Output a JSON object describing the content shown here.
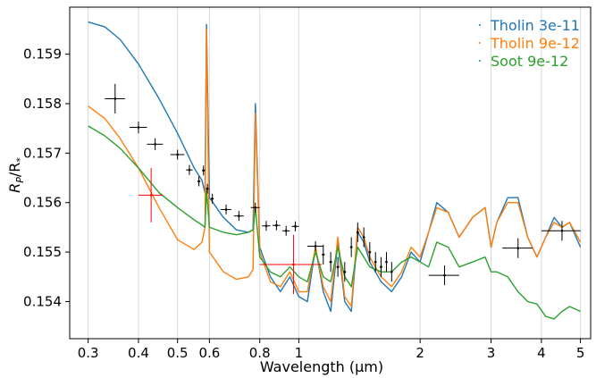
{
  "chart_data": {
    "type": "line",
    "title": "",
    "xlabel": "Wavelength (μm)",
    "ylabel_main": "R",
    "ylabel_sub1": "P",
    "ylabel_mid": "/R",
    "ylabel_sub2": "*",
    "x_scale": "log",
    "xlim": [
      0.27,
      5.3
    ],
    "ylim": [
      0.15325,
      0.15995
    ],
    "x_ticks": [
      0.3,
      0.4,
      0.5,
      0.6,
      0.8,
      1,
      2,
      3,
      4,
      5
    ],
    "x_tick_labels": [
      "0.3",
      "0.4",
      "0.5",
      "0.6",
      "0.8",
      "1",
      "2",
      "3",
      "4",
      "5"
    ],
    "y_ticks": [
      0.154,
      0.155,
      0.156,
      0.157,
      0.158,
      0.159
    ],
    "y_tick_labels": [
      "0.154",
      "0.155",
      "0.156",
      "0.157",
      "0.158",
      "0.159"
    ],
    "grid": "vertical",
    "legend_position": "top-right",
    "series": [
      {
        "name": "Tholin 3e-11",
        "color": "#1f77b4",
        "x": [
          0.3,
          0.33,
          0.36,
          0.4,
          0.45,
          0.5,
          0.55,
          0.575,
          0.585,
          0.59,
          0.6,
          0.65,
          0.7,
          0.75,
          0.77,
          0.78,
          0.8,
          0.85,
          0.9,
          0.95,
          1.0,
          1.05,
          1.1,
          1.15,
          1.2,
          1.25,
          1.3,
          1.35,
          1.4,
          1.45,
          1.5,
          1.6,
          1.7,
          1.8,
          1.9,
          2.0,
          2.1,
          2.2,
          2.35,
          2.5,
          2.7,
          2.9,
          3.0,
          3.1,
          3.3,
          3.5,
          3.7,
          3.9,
          4.1,
          4.3,
          4.5,
          4.7,
          5.0
        ],
        "y": [
          0.15965,
          0.15955,
          0.1593,
          0.1588,
          0.1581,
          0.1574,
          0.1567,
          0.15645,
          0.1562,
          0.1596,
          0.1561,
          0.1557,
          0.15545,
          0.1554,
          0.15545,
          0.158,
          0.1551,
          0.1545,
          0.1542,
          0.1545,
          0.1541,
          0.154,
          0.1551,
          0.1542,
          0.1538,
          0.1552,
          0.154,
          0.1538,
          0.1554,
          0.1552,
          0.1548,
          0.1544,
          0.1542,
          0.1545,
          0.155,
          0.1548,
          0.1554,
          0.156,
          0.1558,
          0.1553,
          0.1557,
          0.1559,
          0.1551,
          0.1556,
          0.1561,
          0.1561,
          0.1553,
          0.1549,
          0.1553,
          0.1557,
          0.1555,
          0.1556,
          0.1551
        ]
      },
      {
        "name": "Tholin 9e-12",
        "color": "#ff7f0e",
        "x": [
          0.3,
          0.33,
          0.36,
          0.4,
          0.45,
          0.5,
          0.55,
          0.575,
          0.585,
          0.59,
          0.6,
          0.65,
          0.7,
          0.75,
          0.77,
          0.78,
          0.8,
          0.85,
          0.9,
          0.95,
          1.0,
          1.05,
          1.1,
          1.15,
          1.2,
          1.25,
          1.3,
          1.35,
          1.4,
          1.45,
          1.5,
          1.6,
          1.7,
          1.8,
          1.9,
          2.0,
          2.1,
          2.2,
          2.35,
          2.5,
          2.7,
          2.9,
          3.0,
          3.1,
          3.3,
          3.5,
          3.7,
          3.9,
          4.1,
          4.3,
          4.5,
          4.7,
          5.0
        ],
        "y": [
          0.15795,
          0.1577,
          0.1573,
          0.1567,
          0.1559,
          0.15525,
          0.15505,
          0.1552,
          0.1555,
          0.1595,
          0.155,
          0.1546,
          0.15445,
          0.1545,
          0.15465,
          0.1578,
          0.155,
          0.1544,
          0.1543,
          0.1546,
          0.1542,
          0.1542,
          0.1551,
          0.1543,
          0.154,
          0.1553,
          0.1541,
          0.1539,
          0.1555,
          0.1553,
          0.1549,
          0.1545,
          0.1543,
          0.1546,
          0.1551,
          0.1549,
          0.1554,
          0.1559,
          0.1558,
          0.1553,
          0.1557,
          0.1559,
          0.1551,
          0.1556,
          0.156,
          0.156,
          0.1553,
          0.1549,
          0.1553,
          0.1556,
          0.1555,
          0.1556,
          0.1552
        ]
      },
      {
        "name": "Soot 9e-12",
        "color": "#2ca02c",
        "x": [
          0.3,
          0.33,
          0.36,
          0.4,
          0.45,
          0.5,
          0.55,
          0.575,
          0.585,
          0.59,
          0.6,
          0.65,
          0.7,
          0.75,
          0.77,
          0.78,
          0.8,
          0.85,
          0.9,
          0.95,
          1.0,
          1.05,
          1.1,
          1.15,
          1.2,
          1.25,
          1.3,
          1.35,
          1.4,
          1.45,
          1.5,
          1.6,
          1.7,
          1.8,
          1.9,
          2.0,
          2.1,
          2.2,
          2.35,
          2.5,
          2.7,
          2.9,
          3.0,
          3.1,
          3.3,
          3.5,
          3.7,
          3.9,
          4.1,
          4.3,
          4.5,
          4.7,
          5.0
        ],
        "y": [
          0.15755,
          0.15735,
          0.1571,
          0.1567,
          0.1562,
          0.1559,
          0.15565,
          0.15555,
          0.1555,
          0.15625,
          0.1555,
          0.1554,
          0.15535,
          0.1554,
          0.15545,
          0.1559,
          0.1549,
          0.1546,
          0.1545,
          0.1547,
          0.1545,
          0.1544,
          0.155,
          0.1545,
          0.1544,
          0.1551,
          0.1545,
          0.1543,
          0.1551,
          0.1549,
          0.1547,
          0.1546,
          0.1546,
          0.1548,
          0.1549,
          0.1548,
          0.1547,
          0.1552,
          0.1551,
          0.1547,
          0.1548,
          0.1549,
          0.1546,
          0.1546,
          0.1545,
          0.1542,
          0.154,
          0.15395,
          0.1537,
          0.15365,
          0.1538,
          0.1539,
          0.1538
        ]
      }
    ],
    "observations": [
      {
        "x": 0.35,
        "y": 0.1581,
        "xerr_lo": 0.02,
        "xerr_hi": 0.02,
        "yerr": 0.0003,
        "color": "#000000"
      },
      {
        "x": 0.4,
        "y": 0.15752,
        "xerr_lo": 0.02,
        "xerr_hi": 0.02,
        "yerr": 0.00012,
        "color": "#000000"
      },
      {
        "x": 0.44,
        "y": 0.15718,
        "xerr_lo": 0.02,
        "xerr_hi": 0.02,
        "yerr": 0.00012,
        "color": "#000000"
      },
      {
        "x": 0.5,
        "y": 0.15697,
        "xerr_lo": 0.02,
        "xerr_hi": 0.02,
        "yerr": 0.0001,
        "color": "#000000"
      },
      {
        "x": 0.535,
        "y": 0.15666,
        "xerr_lo": 0.01,
        "xerr_hi": 0.01,
        "yerr": 0.0001,
        "color": "#000000"
      },
      {
        "x": 0.565,
        "y": 0.15643,
        "xerr_lo": 0.005,
        "xerr_hi": 0.005,
        "yerr": 0.0001,
        "color": "#000000"
      },
      {
        "x": 0.58,
        "y": 0.15665,
        "xerr_lo": 0.005,
        "xerr_hi": 0.005,
        "yerr": 0.0001,
        "color": "#000000"
      },
      {
        "x": 0.593,
        "y": 0.15628,
        "xerr_lo": 0.005,
        "xerr_hi": 0.005,
        "yerr": 0.0001,
        "color": "#000000"
      },
      {
        "x": 0.61,
        "y": 0.15608,
        "xerr_lo": 0.005,
        "xerr_hi": 0.005,
        "yerr": 0.0001,
        "color": "#000000"
      },
      {
        "x": 0.66,
        "y": 0.15586,
        "xerr_lo": 0.02,
        "xerr_hi": 0.02,
        "yerr": 0.0001,
        "color": "#000000"
      },
      {
        "x": 0.71,
        "y": 0.15573,
        "xerr_lo": 0.02,
        "xerr_hi": 0.02,
        "yerr": 0.0001,
        "color": "#000000"
      },
      {
        "x": 0.78,
        "y": 0.1559,
        "xerr_lo": 0.02,
        "xerr_hi": 0.02,
        "yerr": 0.0001,
        "color": "#000000"
      },
      {
        "x": 0.83,
        "y": 0.15553,
        "xerr_lo": 0.02,
        "xerr_hi": 0.02,
        "yerr": 0.0001,
        "color": "#000000"
      },
      {
        "x": 0.88,
        "y": 0.15554,
        "xerr_lo": 0.02,
        "xerr_hi": 0.02,
        "yerr": 0.0001,
        "color": "#000000"
      },
      {
        "x": 0.93,
        "y": 0.15543,
        "xerr_lo": 0.02,
        "xerr_hi": 0.02,
        "yerr": 0.0001,
        "color": "#000000"
      },
      {
        "x": 0.98,
        "y": 0.15552,
        "xerr_lo": 0.02,
        "xerr_hi": 0.02,
        "yerr": 0.0001,
        "color": "#000000"
      },
      {
        "x": 1.1,
        "y": 0.15512,
        "xerr_lo": 0.05,
        "xerr_hi": 0.05,
        "yerr": 0.0001,
        "color": "#000000"
      },
      {
        "x": 1.15,
        "y": 0.15495,
        "xerr_lo": 0.01,
        "xerr_hi": 0.01,
        "yerr": 0.0002,
        "color": "#000000"
      },
      {
        "x": 1.2,
        "y": 0.1548,
        "xerr_lo": 0.01,
        "xerr_hi": 0.01,
        "yerr": 0.0002,
        "color": "#000000"
      },
      {
        "x": 1.25,
        "y": 0.1547,
        "xerr_lo": 0.01,
        "xerr_hi": 0.01,
        "yerr": 0.0002,
        "color": "#000000"
      },
      {
        "x": 1.3,
        "y": 0.1546,
        "xerr_lo": 0.01,
        "xerr_hi": 0.01,
        "yerr": 0.0002,
        "color": "#000000"
      },
      {
        "x": 1.35,
        "y": 0.1551,
        "xerr_lo": 0.01,
        "xerr_hi": 0.01,
        "yerr": 0.0002,
        "color": "#000000"
      },
      {
        "x": 1.4,
        "y": 0.1554,
        "xerr_lo": 0.01,
        "xerr_hi": 0.01,
        "yerr": 0.0002,
        "color": "#000000"
      },
      {
        "x": 1.45,
        "y": 0.1553,
        "xerr_lo": 0.01,
        "xerr_hi": 0.01,
        "yerr": 0.0002,
        "color": "#000000"
      },
      {
        "x": 1.5,
        "y": 0.155,
        "xerr_lo": 0.01,
        "xerr_hi": 0.01,
        "yerr": 0.0002,
        "color": "#000000"
      },
      {
        "x": 1.55,
        "y": 0.1548,
        "xerr_lo": 0.01,
        "xerr_hi": 0.01,
        "yerr": 0.0002,
        "color": "#000000"
      },
      {
        "x": 1.6,
        "y": 0.1547,
        "xerr_lo": 0.01,
        "xerr_hi": 0.01,
        "yerr": 0.0002,
        "color": "#000000"
      },
      {
        "x": 1.65,
        "y": 0.1548,
        "xerr_lo": 0.01,
        "xerr_hi": 0.01,
        "yerr": 0.0002,
        "color": "#000000"
      },
      {
        "x": 1.7,
        "y": 0.1546,
        "xerr_lo": 0.01,
        "xerr_hi": 0.01,
        "yerr": 0.0002,
        "color": "#000000"
      },
      {
        "x": 2.3,
        "y": 0.15453,
        "xerr_lo": 0.2,
        "xerr_hi": 0.2,
        "yerr": 0.0002,
        "color": "#000000"
      },
      {
        "x": 3.5,
        "y": 0.15508,
        "xerr_lo": 0.3,
        "xerr_hi": 0.3,
        "yerr": 0.0002,
        "color": "#000000"
      },
      {
        "x": 4.5,
        "y": 0.15543,
        "xerr_lo": 0.5,
        "xerr_hi": 0.5,
        "yerr": 0.0002,
        "color": "#000000"
      },
      {
        "x": 0.43,
        "y": 0.15615,
        "xerr_lo": 0.03,
        "xerr_hi": 0.03,
        "yerr": 0.00055,
        "color": "#ff0000"
      },
      {
        "x": 0.97,
        "y": 0.15475,
        "xerr_lo": 0.17,
        "xerr_hi": 0.17,
        "yerr": 0.0006,
        "color": "#ff0000"
      }
    ]
  }
}
